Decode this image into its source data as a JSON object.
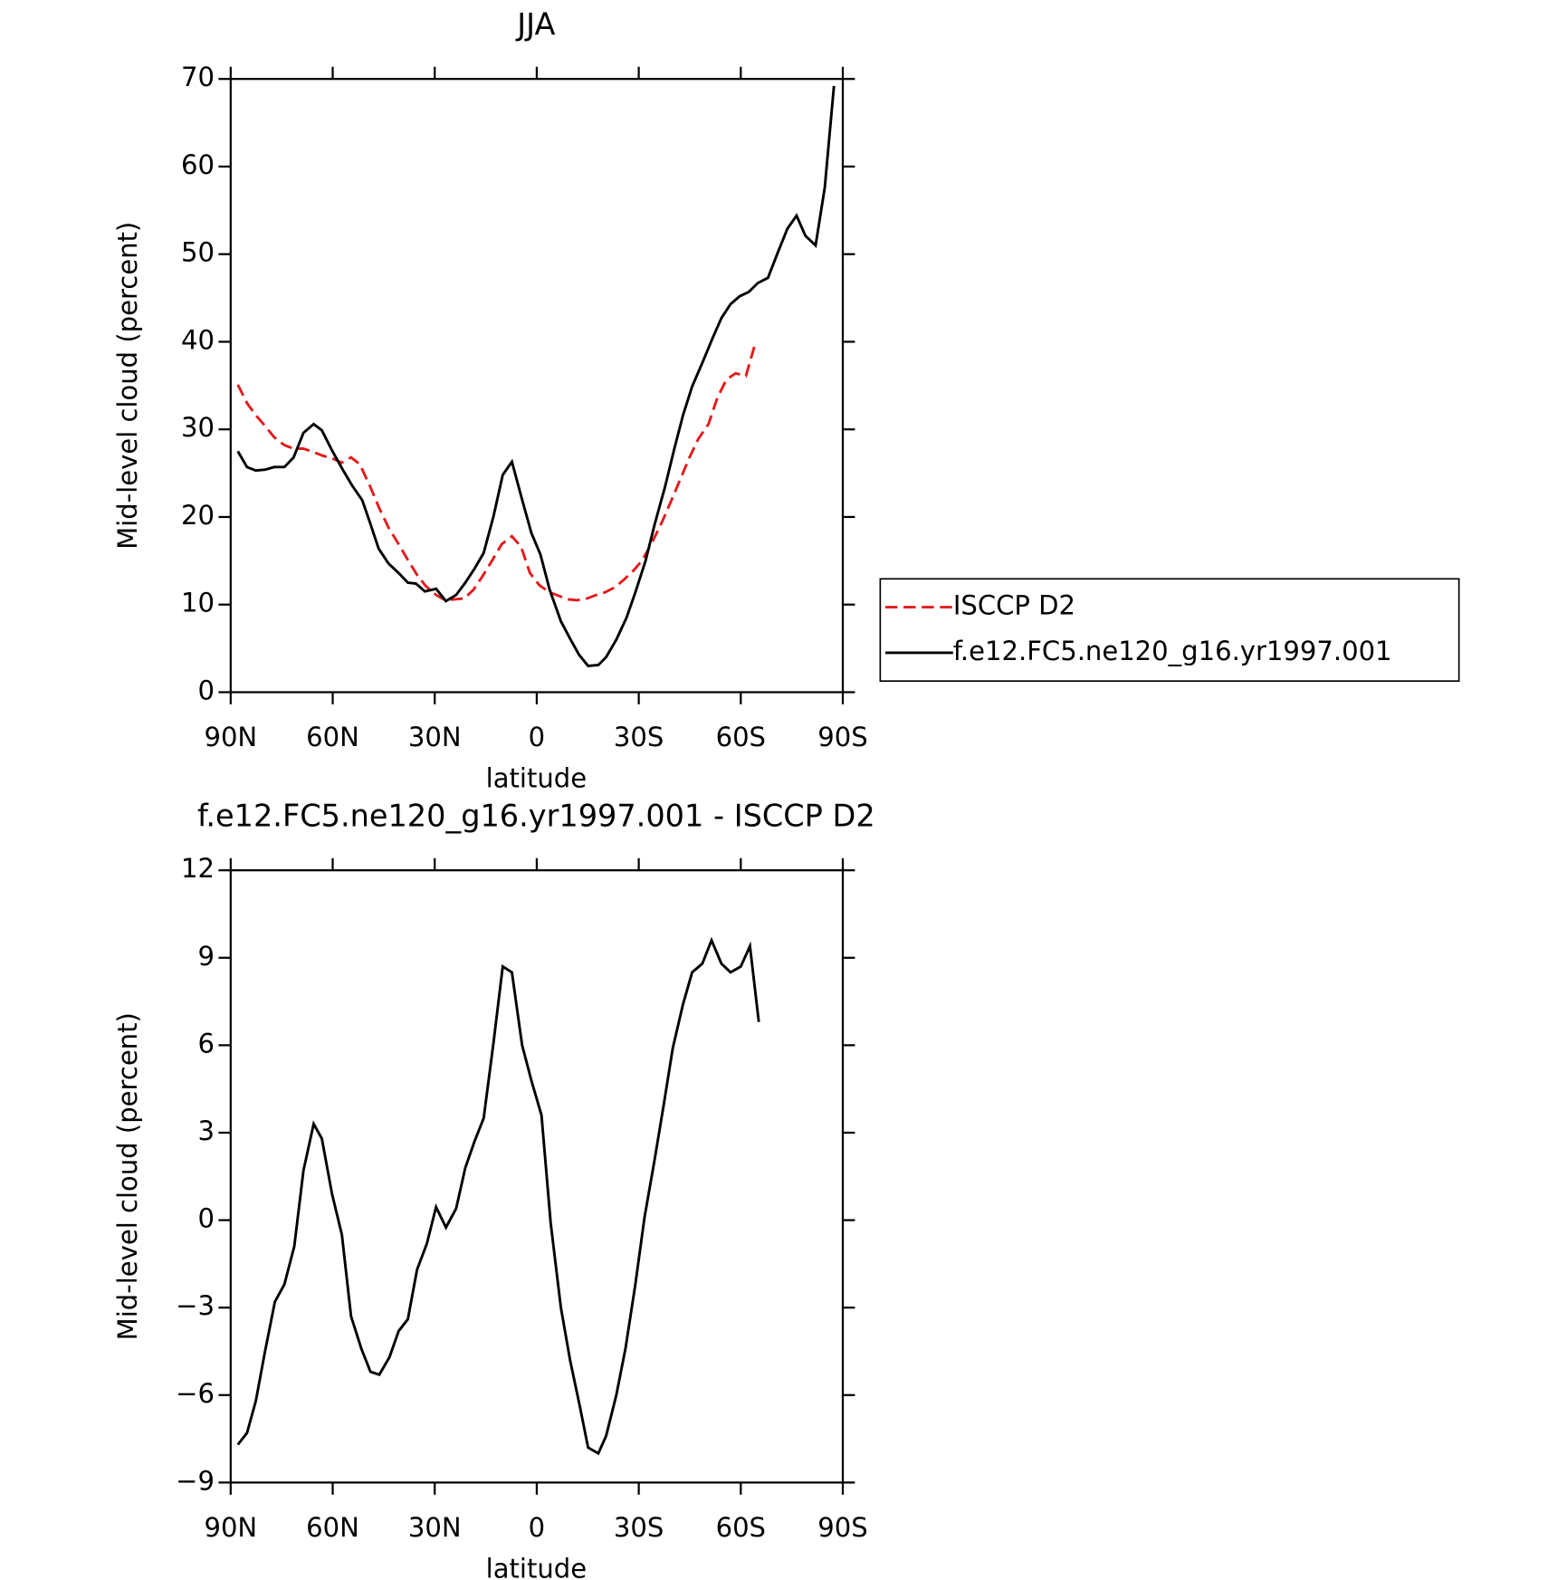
{
  "chart_data": [
    {
      "type": "line",
      "title": "JJA",
      "xlabel": "latitude",
      "ylabel": "Mid-level cloud (percent)",
      "xlim": [
        90,
        -90
      ],
      "xticks": [
        {
          "value": 90,
          "label": "90N"
        },
        {
          "value": 60,
          "label": "60N"
        },
        {
          "value": 30,
          "label": "30N"
        },
        0,
        {
          "value": -30,
          "label": "30S"
        },
        {
          "value": -60,
          "label": "60S"
        },
        {
          "value": -90,
          "label": "90S"
        }
      ],
      "ylim": [
        0,
        70
      ],
      "yticks": [
        0,
        10,
        20,
        30,
        40,
        50,
        60,
        70
      ],
      "legend": "right",
      "series": [
        {
          "name": "ISCCP D2",
          "color": "#e31a1c",
          "style": "dashed",
          "x": [
            87.9,
            85.2,
            82.6,
            79.9,
            77.2,
            74.2,
            71.5,
            68.6,
            65.6,
            63.0,
            60.2,
            57.3,
            54.6,
            52.0,
            48.9,
            46.3,
            43.6,
            40.6,
            37.9,
            35.2,
            32.6,
            29.6,
            26.9,
            24.2,
            21.3,
            18.6,
            16.0,
            13.0,
            10.3,
            7.3,
            4.6,
            2.0,
            -0.8,
            -3.8,
            -6.5,
            -9.1,
            -11.8,
            -14.8,
            -17.5,
            -20.1,
            -23.1,
            -25.8,
            -28.5,
            -31.1,
            -33.8,
            -36.8,
            -39.5,
            -42.1,
            -44.8,
            -47.5,
            -50.5,
            -53.1,
            -55.8,
            -58.5,
            -61.5,
            -64.1
          ],
          "values": [
            35.1,
            33.0,
            31.6,
            30.4,
            29.1,
            28.2,
            27.8,
            27.8,
            27.4,
            27.0,
            26.7,
            26.2,
            26.8,
            26.0,
            23.4,
            21.0,
            18.8,
            16.9,
            15.1,
            13.4,
            12.1,
            11.1,
            10.5,
            10.6,
            10.7,
            11.7,
            13.2,
            15.1,
            16.9,
            17.8,
            16.6,
            13.6,
            12.2,
            11.4,
            11.0,
            10.6,
            10.5,
            10.7,
            11.1,
            11.4,
            12.0,
            12.9,
            13.9,
            15.1,
            17.0,
            19.4,
            21.8,
            24.2,
            26.7,
            28.9,
            30.6,
            33.6,
            35.7,
            36.4,
            36.1,
            39.6
          ]
        },
        {
          "name": "f.e12.FC5.ne120_g16.yr1997.001",
          "color": "#000000",
          "style": "solid",
          "x": [
            87.9,
            85.2,
            82.6,
            79.9,
            77.2,
            74.2,
            71.5,
            68.6,
            65.6,
            63.2,
            60.2,
            56.9,
            54.3,
            51.3,
            48.9,
            46.5,
            43.6,
            40.6,
            37.9,
            35.5,
            32.9,
            29.6,
            26.7,
            23.7,
            21.0,
            18.3,
            15.6,
            12.7,
            10.0,
            7.3,
            4.6,
            1.6,
            -1.1,
            -3.8,
            -7.1,
            -10.1,
            -12.4,
            -15.1,
            -18.1,
            -20.4,
            -23.4,
            -26.4,
            -29.0,
            -32.0,
            -34.7,
            -37.7,
            -40.4,
            -43.0,
            -45.7,
            -48.7,
            -51.7,
            -54.3,
            -57.0,
            -59.7,
            -62.4,
            -65.0,
            -68.0,
            -70.7,
            -73.7,
            -76.4,
            -79.0,
            -82.0,
            -84.7,
            -87.4
          ],
          "values": [
            27.5,
            25.7,
            25.3,
            25.4,
            25.7,
            25.7,
            26.8,
            29.6,
            30.6,
            29.9,
            27.6,
            25.3,
            23.6,
            21.9,
            19.2,
            16.4,
            14.7,
            13.6,
            12.5,
            12.4,
            11.5,
            11.8,
            10.4,
            11.1,
            12.5,
            14.1,
            15.9,
            20.1,
            24.8,
            26.3,
            22.4,
            18.2,
            15.7,
            11.7,
            8.1,
            5.9,
            4.3,
            3.0,
            3.1,
            4.0,
            6.0,
            8.5,
            11.4,
            15.0,
            19.2,
            23.4,
            27.7,
            31.6,
            34.9,
            37.6,
            40.4,
            42.7,
            44.3,
            45.2,
            45.7,
            46.7,
            47.3,
            50.0,
            52.9,
            54.4,
            52.1,
            51.0,
            57.6,
            69.2
          ]
        }
      ]
    },
    {
      "type": "line",
      "title": "f.e12.FC5.ne120_g16.yr1997.001 - ISCCP D2",
      "xlabel": "latitude",
      "ylabel": "Mid-level cloud (percent)",
      "xlim": [
        90,
        -90
      ],
      "xticks": [
        {
          "value": 90,
          "label": "90N"
        },
        {
          "value": 60,
          "label": "60N"
        },
        {
          "value": 30,
          "label": "30N"
        },
        0,
        {
          "value": -30,
          "label": "30S"
        },
        {
          "value": -60,
          "label": "60S"
        },
        {
          "value": -90,
          "label": "90S"
        }
      ],
      "ylim": [
        -9,
        12
      ],
      "yticks": [
        {
          "value": -9,
          "label": "−9"
        },
        {
          "value": -6,
          "label": "−6"
        },
        {
          "value": -3,
          "label": "−3"
        },
        0,
        3,
        6,
        9,
        12
      ],
      "series": [
        {
          "color": "#000000",
          "style": "solid",
          "x": [
            87.9,
            85.2,
            82.6,
            79.9,
            77.0,
            74.2,
            71.3,
            68.6,
            65.6,
            63.2,
            60.2,
            57.3,
            54.6,
            51.6,
            48.9,
            46.3,
            43.3,
            40.6,
            37.9,
            35.2,
            32.3,
            29.6,
            26.7,
            23.7,
            21.0,
            18.3,
            15.6,
            12.7,
            10.0,
            7.3,
            4.3,
            1.6,
            -1.4,
            -4.1,
            -7.1,
            -9.8,
            -12.7,
            -15.1,
            -18.1,
            -20.4,
            -23.4,
            -26.1,
            -29.0,
            -31.7,
            -34.7,
            -37.4,
            -40.0,
            -43.0,
            -45.7,
            -48.7,
            -51.4,
            -54.3,
            -57.0,
            -60.0,
            -62.7,
            -65.3
          ],
          "values": [
            -7.7,
            -7.3,
            -6.2,
            -4.5,
            -2.8,
            -2.2,
            -0.9,
            1.7,
            3.3,
            2.8,
            0.9,
            -0.5,
            -3.3,
            -4.4,
            -5.2,
            -5.3,
            -4.7,
            -3.8,
            -3.4,
            -1.7,
            -0.8,
            0.45,
            -0.25,
            0.4,
            1.8,
            2.7,
            3.5,
            6.1,
            8.7,
            8.5,
            6.0,
            4.8,
            3.6,
            -0.1,
            -3.0,
            -4.8,
            -6.4,
            -7.8,
            -8.0,
            -7.4,
            -6.0,
            -4.4,
            -2.2,
            0.1,
            2.1,
            4.0,
            5.9,
            7.4,
            8.5,
            8.8,
            9.6,
            8.8,
            8.5,
            8.7,
            9.4,
            6.8
          ]
        }
      ]
    }
  ]
}
